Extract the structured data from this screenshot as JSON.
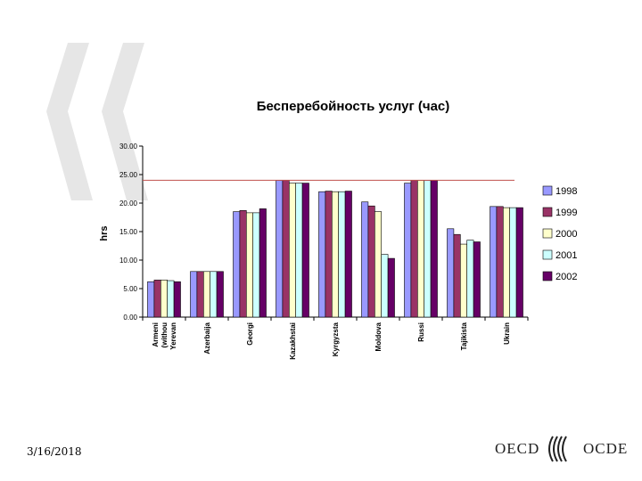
{
  "footer": {
    "date": "3/16/2018"
  },
  "logo": {
    "left_text": "OECD",
    "right_text": "OCDE"
  },
  "colors": {
    "reference_line": "#c0504d",
    "watermark": "#e6e6e6",
    "series": [
      "#9999ff",
      "#993366",
      "#ffffcc",
      "#ccffff",
      "#660066"
    ]
  },
  "chart_data": {
    "type": "bar",
    "title": "Бесперебойность услуг (час)",
    "ylabel": "hrs",
    "xlabel": "",
    "ylim": [
      0,
      30
    ],
    "yticks": [
      "0.00",
      "5.00",
      "10.00",
      "15.00",
      "20.00",
      "25.00",
      "30.00"
    ],
    "grid": false,
    "legend_position": "right",
    "reference_line": 24,
    "categories": [
      "Armenia (without Yerevan)",
      "Azerbaijan",
      "Georgia",
      "Kazakhstan",
      "Kyrgyzstan",
      "Moldova",
      "Russia",
      "Tajikistan",
      "Ukraine"
    ],
    "category_labels": [
      [
        "Armeni",
        "(withou",
        "Yerevan"
      ],
      [
        "Azerbaija"
      ],
      [
        "Georgi"
      ],
      [
        "Kazakhstai"
      ],
      [
        "Kyrgyzsta"
      ],
      [
        "Moldova"
      ],
      [
        "Russi"
      ],
      [
        "Tajikista"
      ],
      [
        "Ukrain"
      ]
    ],
    "series": [
      {
        "name": "1998",
        "values": [
          6.2,
          8.0,
          18.5,
          24.0,
          22.0,
          20.2,
          23.5,
          15.5,
          19.4
        ]
      },
      {
        "name": "1999",
        "values": [
          6.5,
          8.0,
          18.7,
          24.0,
          22.1,
          19.5,
          24.0,
          14.5,
          19.4
        ]
      },
      {
        "name": "2000",
        "values": [
          6.5,
          8.0,
          18.3,
          23.5,
          22.0,
          18.5,
          24.0,
          12.8,
          19.2
        ]
      },
      {
        "name": "2001",
        "values": [
          6.4,
          8.0,
          18.3,
          23.5,
          22.0,
          11.0,
          24.0,
          13.5,
          19.2
        ]
      },
      {
        "name": "2002",
        "values": [
          6.2,
          8.0,
          19.0,
          23.5,
          22.1,
          10.3,
          24.0,
          13.2,
          19.2
        ]
      }
    ]
  }
}
